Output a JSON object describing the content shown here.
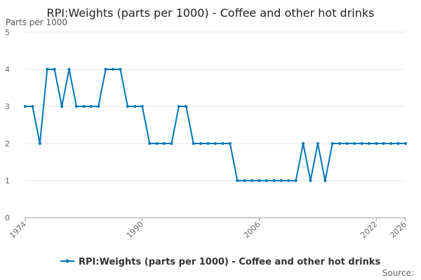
{
  "chart_data": {
    "type": "line",
    "title": "RPI:Weights (parts per 1000) - Coffee and other hot drinks",
    "ylabel": "Parts per 1000",
    "xlabel": "",
    "ylim": [
      0,
      5
    ],
    "y_ticks": [
      0,
      1,
      2,
      3,
      4,
      5
    ],
    "xlim": [
      1974,
      2026
    ],
    "x_tick_labels": [
      "1974",
      "1990",
      "2006",
      "2022",
      "2026"
    ],
    "grid": true,
    "legend_position": "bottom",
    "source_label": "Source:",
    "colors": {
      "series": "#0076b6",
      "grid": "#e6e6e6",
      "axis": "#999999"
    },
    "x": [
      1974,
      1975,
      1976,
      1977,
      1978,
      1979,
      1980,
      1981,
      1982,
      1983,
      1984,
      1985,
      1986,
      1987,
      1988,
      1989,
      1990,
      1991,
      1992,
      1993,
      1994,
      1995,
      1996,
      1997,
      1998,
      1999,
      2000,
      2001,
      2002,
      2003,
      2004,
      2005,
      2006,
      2007,
      2008,
      2009,
      2010,
      2011,
      2012,
      2013,
      2014,
      2015,
      2016,
      2017,
      2018,
      2019,
      2020,
      2021,
      2022,
      2023,
      2024,
      2025,
      2026
    ],
    "series": [
      {
        "name": "RPI:Weights (parts per 1000) - Coffee and other hot drinks",
        "values": [
          3,
          3,
          2,
          4,
          4,
          3,
          4,
          3,
          3,
          3,
          3,
          4,
          4,
          4,
          3,
          3,
          3,
          2,
          2,
          2,
          2,
          3,
          3,
          2,
          2,
          2,
          2,
          2,
          2,
          1,
          1,
          1,
          1,
          1,
          1,
          1,
          1,
          1,
          2,
          1,
          2,
          1,
          2,
          2,
          2,
          2,
          2,
          2,
          2,
          2,
          2,
          2,
          2
        ]
      }
    ]
  }
}
